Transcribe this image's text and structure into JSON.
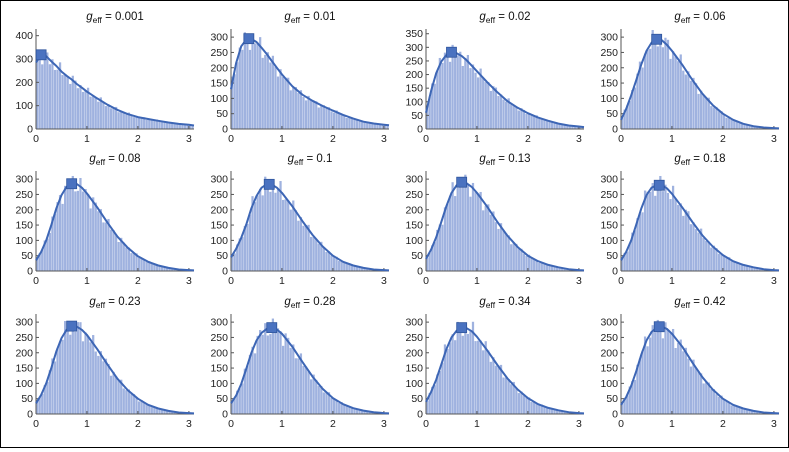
{
  "colors": {
    "bar": "#9fb2df",
    "curve": "#3d66b5",
    "marker": "#4a72c0",
    "axis": "#555555"
  },
  "chart_data": [
    {
      "type": "histogram-with-curve",
      "title": "g_eff = 0.001",
      "title_sub": "eff",
      "title_value": "= 0.001",
      "xlim": [
        0,
        3.1
      ],
      "ylim": [
        0,
        420
      ],
      "xticks": [
        "0",
        "1",
        "2",
        "3"
      ],
      "yticks": [
        "0",
        "100",
        "200",
        "300",
        "400"
      ],
      "curve_x": [
        0,
        0.1,
        0.2,
        0.3,
        0.4,
        0.5,
        0.6,
        0.7,
        0.8,
        0.9,
        1.0,
        1.2,
        1.4,
        1.6,
        1.8,
        2.0,
        2.2,
        2.4,
        2.6,
        2.8,
        3.0,
        3.1
      ],
      "curve_y": [
        285,
        318,
        312,
        290,
        270,
        246,
        228,
        212,
        193,
        177,
        160,
        131,
        104,
        82,
        64,
        51,
        43,
        35,
        28,
        22,
        18,
        15
      ],
      "marker": [
        0.1,
        318
      ]
    },
    {
      "type": "histogram-with-curve",
      "title": "g_eff = 0.01",
      "title_sub": "eff",
      "title_value": "= 0.01",
      "xlim": [
        0,
        3.1
      ],
      "ylim": [
        0,
        320
      ],
      "xticks": [
        "0",
        "1",
        "2",
        "3"
      ],
      "yticks": [
        "0",
        "50",
        "100",
        "150",
        "200",
        "250",
        "300"
      ],
      "curve_x": [
        0,
        0.1,
        0.2,
        0.3,
        0.4,
        0.5,
        0.6,
        0.7,
        0.8,
        0.9,
        1.0,
        1.2,
        1.4,
        1.6,
        1.8,
        2.0,
        2.2,
        2.4,
        2.6,
        2.8,
        3.0,
        3.1
      ],
      "curve_y": [
        130,
        215,
        270,
        292,
        294,
        284,
        265,
        245,
        222,
        200,
        178,
        140,
        112,
        92,
        75,
        60,
        46,
        34,
        24,
        18,
        14,
        12
      ],
      "marker": [
        0.35,
        295
      ]
    },
    {
      "type": "histogram-with-curve",
      "title": "g_eff = 0.02",
      "title_sub": "eff",
      "title_value": "= 0.02",
      "xlim": [
        0,
        3.1
      ],
      "ylim": [
        0,
        360
      ],
      "xticks": [
        "0",
        "1",
        "2",
        "3"
      ],
      "yticks": [
        "0",
        "50",
        "100",
        "150",
        "200",
        "250",
        "300",
        "350"
      ],
      "curve_x": [
        0,
        0.1,
        0.2,
        0.3,
        0.4,
        0.5,
        0.6,
        0.7,
        0.8,
        0.9,
        1.0,
        1.2,
        1.4,
        1.6,
        1.8,
        2.0,
        2.2,
        2.4,
        2.6,
        2.8,
        3.0,
        3.1
      ],
      "curve_y": [
        60,
        140,
        205,
        248,
        272,
        280,
        278,
        268,
        252,
        232,
        212,
        172,
        135,
        102,
        78,
        58,
        42,
        30,
        20,
        13,
        9,
        7
      ],
      "marker": [
        0.5,
        282
      ]
    },
    {
      "type": "histogram-with-curve",
      "title": "g_eff = 0.06",
      "title_sub": "eff",
      "title_value": "= 0.06",
      "xlim": [
        0,
        3.1
      ],
      "ylim": [
        0,
        320
      ],
      "xticks": [
        "0",
        "1",
        "2",
        "3"
      ],
      "yticks": [
        "0",
        "50",
        "100",
        "150",
        "200",
        "250",
        "300"
      ],
      "curve_x": [
        0,
        0.1,
        0.2,
        0.3,
        0.4,
        0.5,
        0.6,
        0.7,
        0.8,
        0.9,
        1.0,
        1.2,
        1.4,
        1.6,
        1.8,
        2.0,
        2.2,
        2.4,
        2.6,
        2.8,
        3.0,
        3.1
      ],
      "curve_y": [
        30,
        65,
        110,
        160,
        212,
        255,
        282,
        293,
        290,
        275,
        255,
        210,
        160,
        115,
        78,
        50,
        30,
        17,
        9,
        5,
        3,
        2
      ],
      "marker": [
        0.7,
        293
      ]
    },
    {
      "type": "histogram-with-curve",
      "title": "g_eff = 0.08",
      "title_sub": "eff",
      "title_value": "= 0.08",
      "xlim": [
        0,
        3.1
      ],
      "ylim": [
        0,
        320
      ],
      "xticks": [
        "0",
        "1",
        "2",
        "3"
      ],
      "yticks": [
        "0",
        "50",
        "100",
        "150",
        "200",
        "250",
        "300"
      ],
      "curve_x": [
        0,
        0.1,
        0.2,
        0.3,
        0.4,
        0.5,
        0.6,
        0.7,
        0.8,
        0.9,
        1.0,
        1.2,
        1.4,
        1.6,
        1.8,
        2.0,
        2.2,
        2.4,
        2.6,
        2.8,
        3.0,
        3.1
      ],
      "curve_y": [
        35,
        62,
        100,
        150,
        205,
        248,
        275,
        286,
        284,
        272,
        253,
        208,
        158,
        112,
        76,
        48,
        30,
        18,
        10,
        5,
        3,
        2
      ],
      "marker": [
        0.7,
        285
      ]
    },
    {
      "type": "histogram-with-curve",
      "title": "g_eff = 0.1",
      "title_sub": "eff",
      "title_value": "= 0.1",
      "xlim": [
        0,
        3.1
      ],
      "ylim": [
        0,
        320
      ],
      "xticks": [
        "0",
        "1",
        "2",
        "3"
      ],
      "yticks": [
        "0",
        "50",
        "100",
        "150",
        "200",
        "250",
        "300"
      ],
      "curve_x": [
        0,
        0.1,
        0.2,
        0.3,
        0.4,
        0.5,
        0.6,
        0.7,
        0.8,
        0.9,
        1.0,
        1.2,
        1.4,
        1.6,
        1.8,
        2.0,
        2.2,
        2.4,
        2.6,
        2.8,
        3.0,
        3.1
      ],
      "curve_y": [
        45,
        72,
        108,
        152,
        205,
        245,
        272,
        283,
        282,
        272,
        255,
        212,
        163,
        118,
        80,
        50,
        30,
        18,
        10,
        5,
        3,
        2
      ],
      "marker": [
        0.75,
        283
      ]
    },
    {
      "type": "histogram-with-curve",
      "title": "g_eff = 0.13",
      "title_sub": "eff",
      "title_value": "= 0.13",
      "xlim": [
        0,
        3.1
      ],
      "ylim": [
        0,
        320
      ],
      "xticks": [
        "0",
        "1",
        "2",
        "3"
      ],
      "yticks": [
        "0",
        "50",
        "100",
        "150",
        "200",
        "250",
        "300"
      ],
      "curve_x": [
        0,
        0.1,
        0.2,
        0.3,
        0.4,
        0.5,
        0.6,
        0.7,
        0.8,
        0.9,
        1.0,
        1.2,
        1.4,
        1.6,
        1.8,
        2.0,
        2.2,
        2.4,
        2.6,
        2.8,
        3.0,
        3.1
      ],
      "curve_y": [
        40,
        70,
        110,
        160,
        212,
        255,
        280,
        290,
        286,
        274,
        255,
        210,
        160,
        115,
        78,
        50,
        32,
        20,
        12,
        6,
        3,
        2
      ],
      "marker": [
        0.7,
        290
      ]
    },
    {
      "type": "histogram-with-curve",
      "title": "g_eff = 0.18",
      "title_sub": "eff",
      "title_value": "= 0.18",
      "xlim": [
        0,
        3.1
      ],
      "ylim": [
        0,
        320
      ],
      "xticks": [
        "0",
        "1",
        "2",
        "3"
      ],
      "yticks": [
        "0",
        "50",
        "100",
        "150",
        "200",
        "250",
        "300"
      ],
      "curve_x": [
        0,
        0.1,
        0.2,
        0.3,
        0.4,
        0.5,
        0.6,
        0.7,
        0.8,
        0.9,
        1.0,
        1.2,
        1.4,
        1.6,
        1.8,
        2.0,
        2.2,
        2.4,
        2.6,
        2.8,
        3.0,
        3.1
      ],
      "curve_y": [
        35,
        62,
        100,
        152,
        205,
        248,
        272,
        280,
        280,
        270,
        252,
        208,
        160,
        116,
        80,
        52,
        32,
        20,
        12,
        6,
        3,
        2
      ],
      "marker": [
        0.75,
        280
      ]
    },
    {
      "type": "histogram-with-curve",
      "title": "g_eff = 0.23",
      "title_sub": "eff",
      "title_value": "= 0.23",
      "xlim": [
        0,
        3.1
      ],
      "ylim": [
        0,
        320
      ],
      "xticks": [
        "0",
        "1",
        "2",
        "3"
      ],
      "yticks": [
        "0",
        "50",
        "100",
        "150",
        "200",
        "250",
        "300"
      ],
      "curve_x": [
        0,
        0.1,
        0.2,
        0.3,
        0.4,
        0.5,
        0.6,
        0.7,
        0.8,
        0.9,
        1.0,
        1.2,
        1.4,
        1.6,
        1.8,
        2.0,
        2.2,
        2.4,
        2.6,
        2.8,
        3.0,
        3.1
      ],
      "curve_y": [
        35,
        62,
        100,
        150,
        205,
        248,
        275,
        286,
        285,
        275,
        258,
        212,
        162,
        115,
        78,
        50,
        30,
        18,
        10,
        5,
        3,
        2
      ],
      "marker": [
        0.7,
        287
      ]
    },
    {
      "type": "histogram-with-curve",
      "title": "g_eff = 0.28",
      "title_sub": "eff",
      "title_value": "= 0.28",
      "xlim": [
        0,
        3.1
      ],
      "ylim": [
        0,
        320
      ],
      "xticks": [
        "0",
        "1",
        "2",
        "3"
      ],
      "yticks": [
        "0",
        "50",
        "100",
        "150",
        "200",
        "250",
        "300"
      ],
      "curve_x": [
        0,
        0.1,
        0.2,
        0.3,
        0.4,
        0.5,
        0.6,
        0.7,
        0.8,
        0.9,
        1.0,
        1.2,
        1.4,
        1.6,
        1.8,
        2.0,
        2.2,
        2.4,
        2.6,
        2.8,
        3.0,
        3.1
      ],
      "curve_y": [
        35,
        60,
        98,
        148,
        200,
        240,
        265,
        278,
        282,
        276,
        262,
        220,
        170,
        122,
        82,
        52,
        32,
        19,
        11,
        6,
        3,
        2
      ],
      "marker": [
        0.8,
        282
      ]
    },
    {
      "type": "histogram-with-curve",
      "title": "g_eff = 0.34",
      "title_sub": "eff",
      "title_value": "= 0.34",
      "xlim": [
        0,
        3.1
      ],
      "ylim": [
        0,
        320
      ],
      "xticks": [
        "0",
        "1",
        "2",
        "3"
      ],
      "yticks": [
        "0",
        "50",
        "100",
        "150",
        "200",
        "250",
        "300"
      ],
      "curve_x": [
        0,
        0.1,
        0.2,
        0.3,
        0.4,
        0.5,
        0.6,
        0.7,
        0.8,
        0.9,
        1.0,
        1.2,
        1.4,
        1.6,
        1.8,
        2.0,
        2.2,
        2.4,
        2.6,
        2.8,
        3.0,
        3.1
      ],
      "curve_y": [
        40,
        72,
        112,
        162,
        212,
        250,
        272,
        282,
        280,
        270,
        252,
        208,
        160,
        116,
        80,
        52,
        32,
        20,
        12,
        6,
        3,
        2
      ],
      "marker": [
        0.7,
        282
      ]
    },
    {
      "type": "histogram-with-curve",
      "title": "g_eff = 0.42",
      "title_sub": "eff",
      "title_value": "= 0.42",
      "xlim": [
        0,
        3.1
      ],
      "ylim": [
        0,
        320
      ],
      "xticks": [
        "0",
        "1",
        "2",
        "3"
      ],
      "yticks": [
        "0",
        "50",
        "100",
        "150",
        "200",
        "250",
        "300"
      ],
      "curve_x": [
        0,
        0.1,
        0.2,
        0.3,
        0.4,
        0.5,
        0.6,
        0.7,
        0.8,
        0.9,
        1.0,
        1.2,
        1.4,
        1.6,
        1.8,
        2.0,
        2.2,
        2.4,
        2.6,
        2.8,
        3.0,
        3.1
      ],
      "curve_y": [
        30,
        55,
        92,
        140,
        195,
        240,
        268,
        282,
        285,
        278,
        262,
        220,
        168,
        120,
        80,
        50,
        30,
        18,
        10,
        5,
        3,
        2
      ],
      "marker": [
        0.75,
        285
      ]
    }
  ]
}
